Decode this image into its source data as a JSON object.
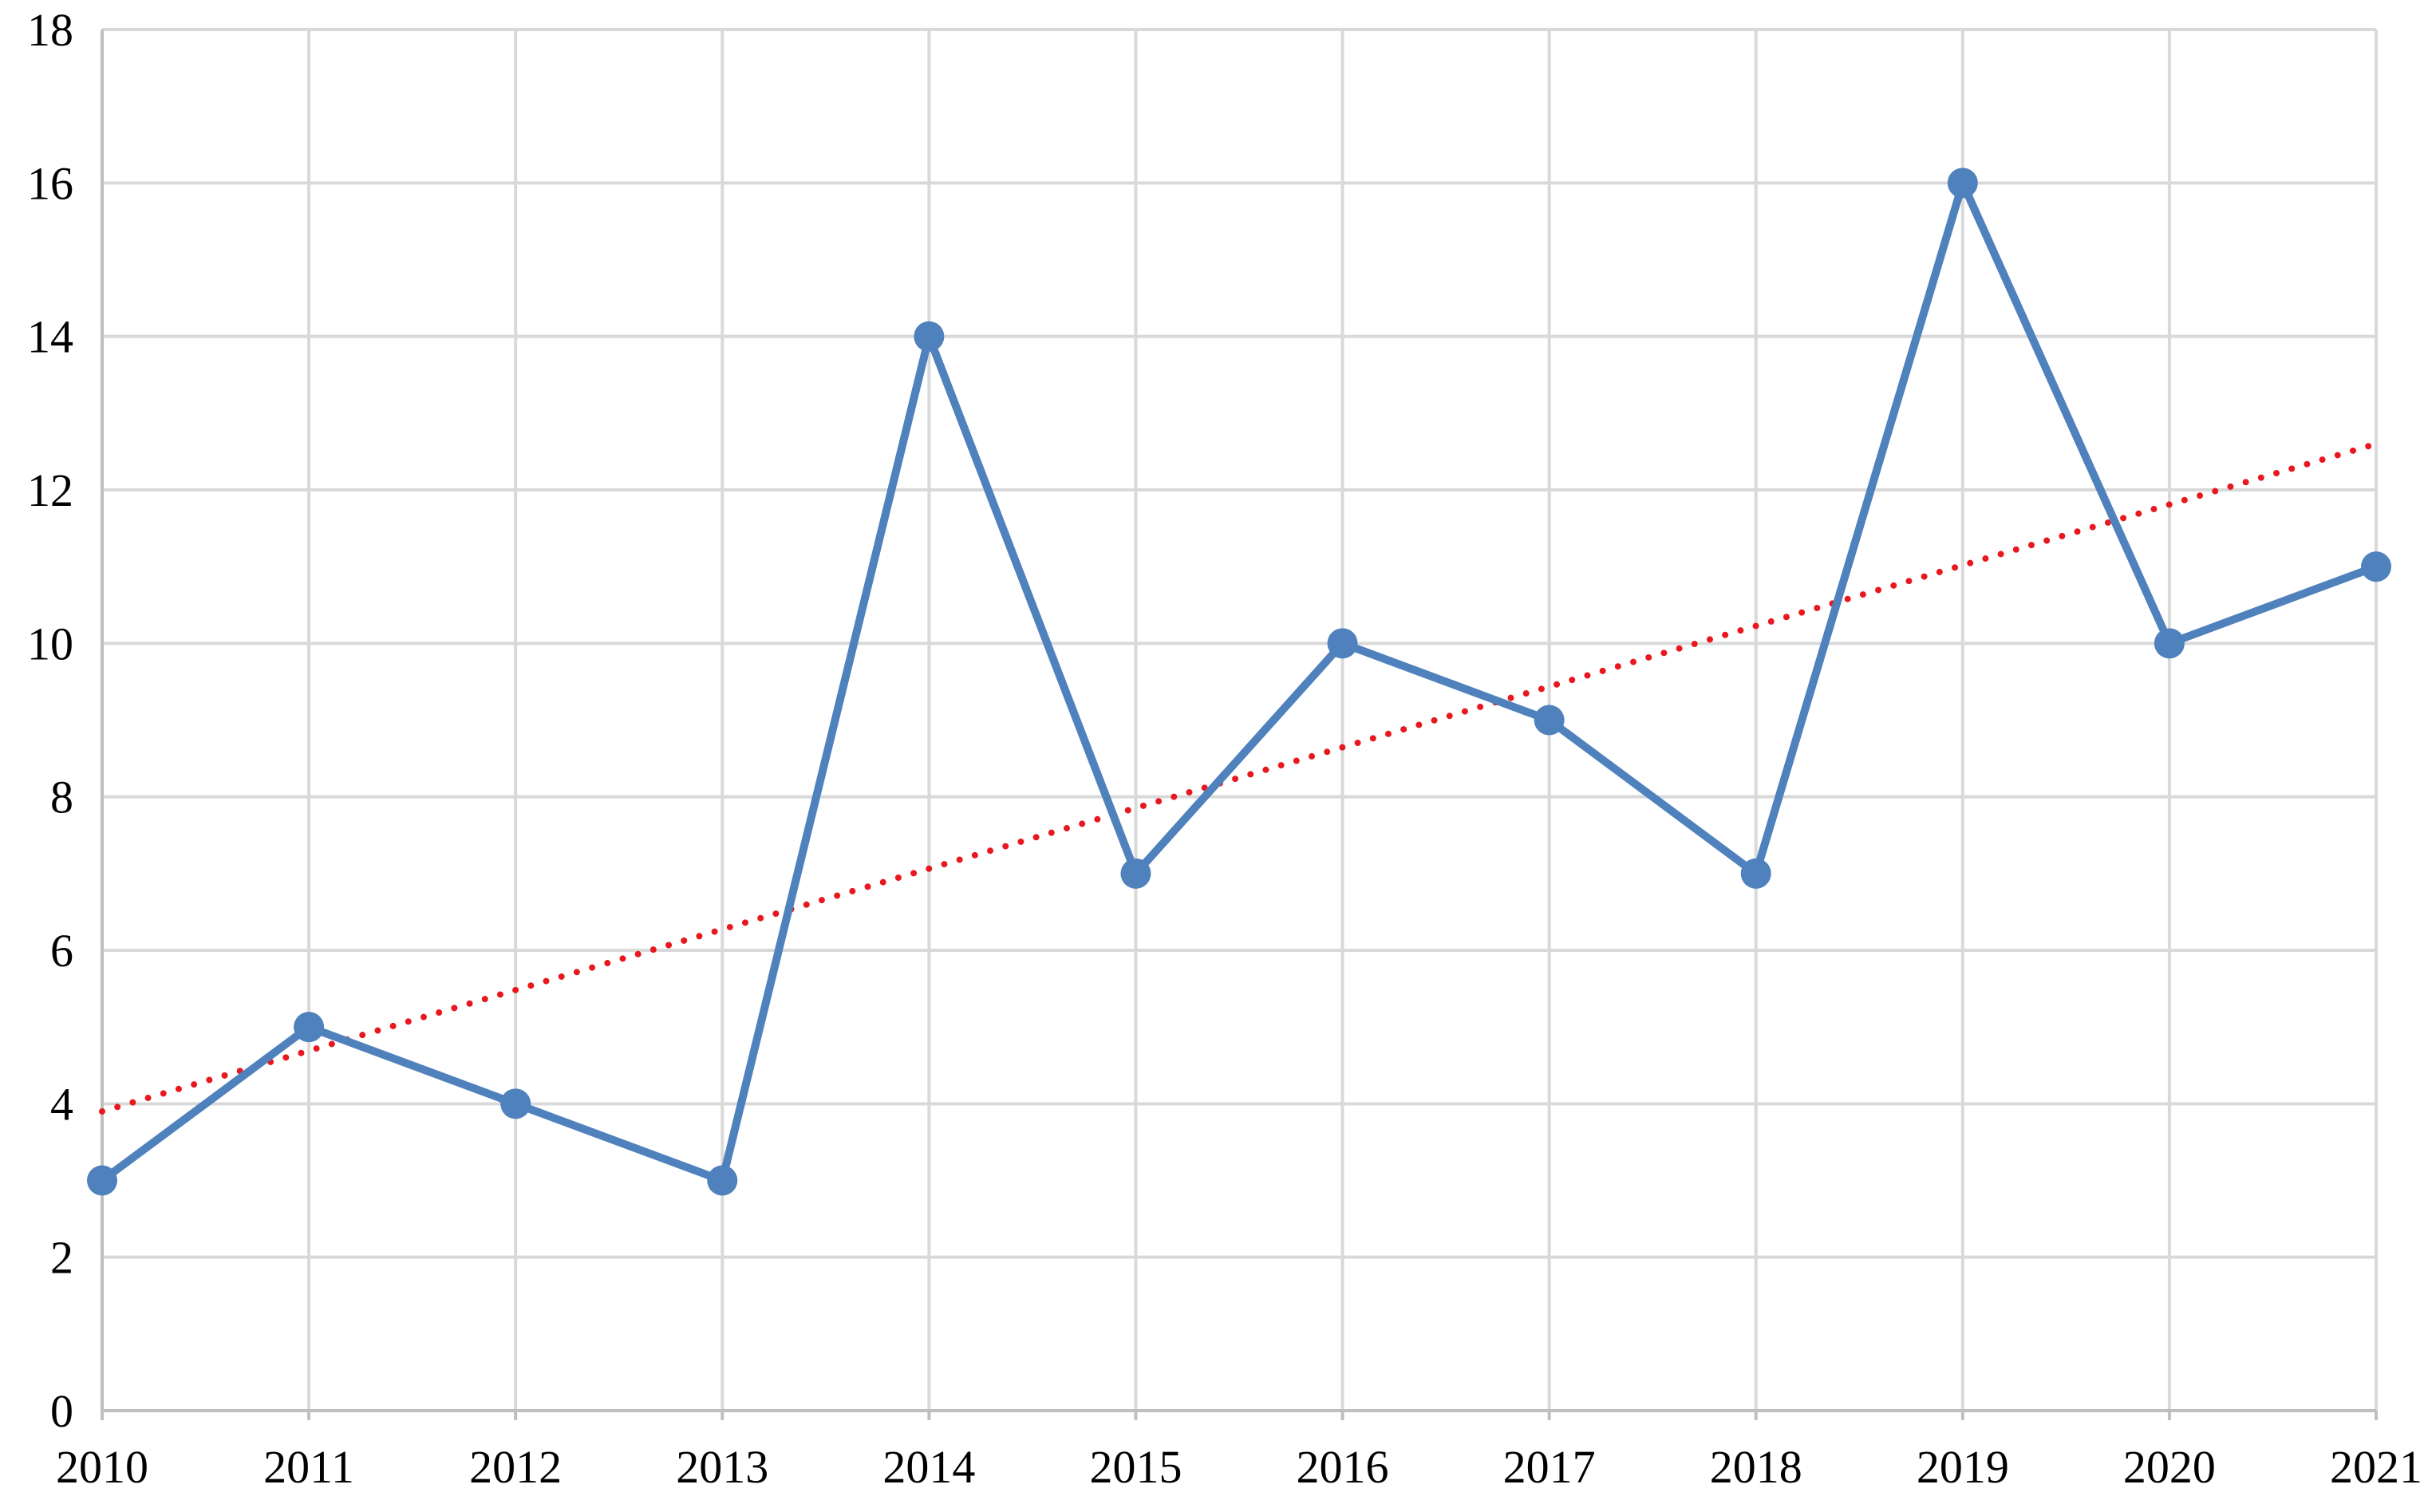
{
  "chart_data": {
    "type": "line",
    "title": "",
    "xlabel": "",
    "ylabel": "",
    "categories": [
      "2010",
      "2011",
      "2012",
      "2013",
      "2014",
      "2015",
      "2016",
      "2017",
      "2018",
      "2019",
      "2020",
      "2021"
    ],
    "series": [
      {
        "values": [
          3,
          5,
          4,
          3,
          14,
          7,
          10,
          9,
          7,
          16,
          10,
          11
        ],
        "color": "#4f81bd",
        "marker": "circle"
      }
    ],
    "trendline": {
      "type": "linear",
      "style": "dotted",
      "color": "#e8181e",
      "start_value": 3.9,
      "end_value": 12.6
    },
    "ylim": [
      0,
      18
    ],
    "yticks": [
      0,
      2,
      4,
      6,
      8,
      10,
      12,
      14,
      16,
      18
    ],
    "grid": true,
    "legend": "none"
  }
}
